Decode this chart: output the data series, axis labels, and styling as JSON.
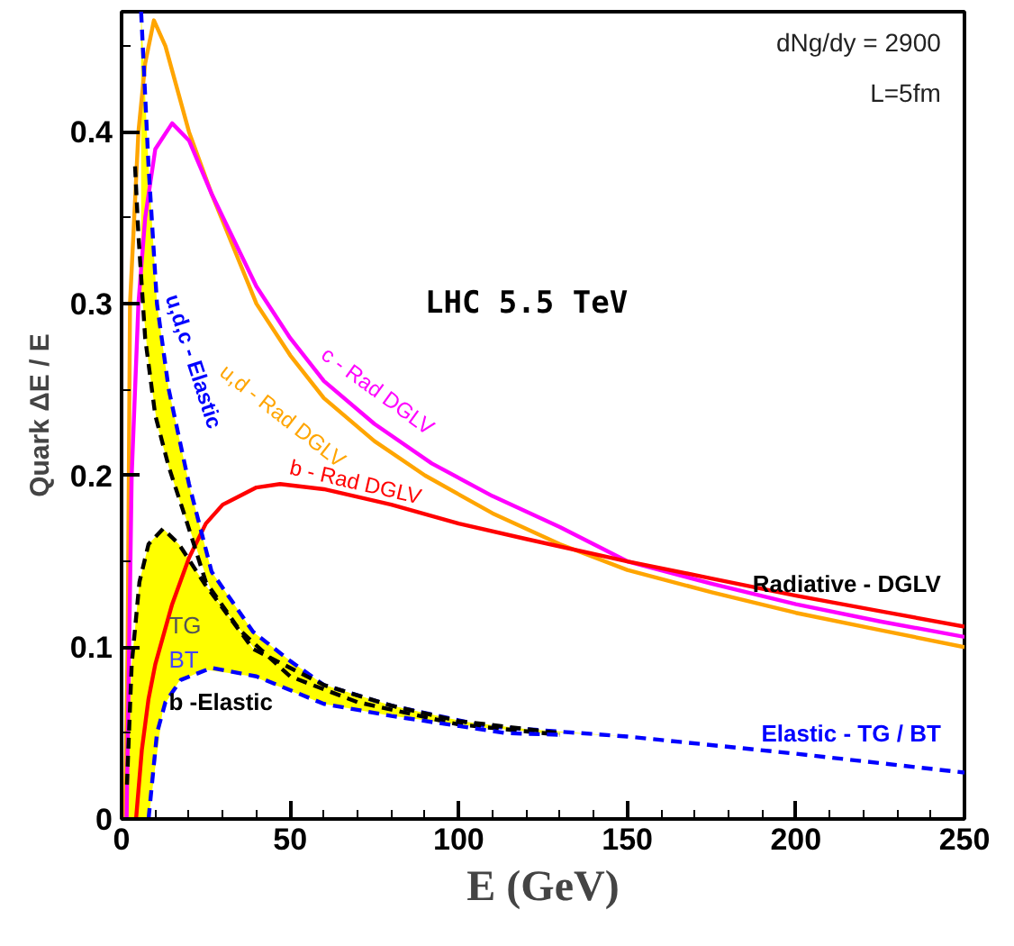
{
  "chart_data": {
    "type": "line",
    "xlabel": "E (GeV)",
    "ylabel": "Quark ΔE / E",
    "xlim": [
      0,
      250
    ],
    "ylim": [
      0,
      0.47
    ],
    "xticks": [
      0,
      50,
      100,
      150,
      200,
      250
    ],
    "yticks": [
      0,
      0.1,
      0.2,
      0.3,
      0.4
    ],
    "grid": false,
    "marker": "none",
    "series": [
      {
        "name": "u,d - Rad DGLV",
        "color": "#ffa500",
        "line_style": "solid",
        "x": [
          1,
          1.8,
          2.5,
          5,
          7,
          9.6,
          13,
          20,
          26.7,
          40,
          50,
          60,
          75,
          90,
          110,
          130,
          150,
          175,
          200,
          225,
          250
        ],
        "values": [
          0,
          0.1,
          0.3,
          0.4,
          0.44,
          0.465,
          0.45,
          0.4,
          0.364,
          0.3,
          0.27,
          0.245,
          0.22,
          0.2,
          0.178,
          0.16,
          0.145,
          0.132,
          0.12,
          0.11,
          0.1
        ]
      },
      {
        "name": "c - Rad DGLV",
        "color": "#ff00ff",
        "line_style": "solid",
        "x": [
          1.5,
          3,
          5,
          7,
          10,
          15,
          20,
          26.7,
          40,
          50,
          60,
          75,
          92,
          110,
          130,
          150,
          175,
          200,
          225,
          250
        ],
        "values": [
          0,
          0.2,
          0.3,
          0.35,
          0.39,
          0.405,
          0.395,
          0.364,
          0.31,
          0.28,
          0.255,
          0.23,
          0.207,
          0.188,
          0.17,
          0.15,
          0.137,
          0.125,
          0.115,
          0.106
        ]
      },
      {
        "name": "b - Rad DGLV",
        "color": "#ff0000",
        "line_style": "solid",
        "x": [
          4.3,
          6,
          8,
          10,
          15,
          20,
          25,
          30,
          40,
          47,
          60,
          80,
          100,
          120,
          150,
          175,
          200,
          225,
          250
        ],
        "values": [
          0,
          0.04,
          0.07,
          0.09,
          0.125,
          0.152,
          0.172,
          0.183,
          0.193,
          0.195,
          0.192,
          0.183,
          0.172,
          0.163,
          0.15,
          0.14,
          0.13,
          0.121,
          0.112
        ]
      },
      {
        "name": "u,d,c - Elastic",
        "color": "#0000ff",
        "line_style": "dashed",
        "x": [
          5.8,
          8,
          10.5,
          14,
          17.6,
          20,
          26.7,
          39,
          50,
          60,
          80,
          108,
          150,
          200,
          250
        ],
        "values": [
          0.47,
          0.38,
          0.3,
          0.25,
          0.217,
          0.195,
          0.144,
          0.109,
          0.092,
          0.078,
          0.066,
          0.054,
          0.048,
          0.038,
          0.027
        ],
        "lower": [
          0.31,
          0.265,
          0.23,
          0.205,
          0.183,
          0.17,
          0.132,
          0.1,
          0.083,
          0.075,
          0.064,
          0.053,
          0.048,
          0.038,
          0.027
        ],
        "upper": [
          0.47,
          0.38,
          0.3,
          0.25,
          0.217,
          0.195,
          0.144,
          0.109,
          0.092,
          0.078,
          0.066,
          0.054,
          0.048,
          0.038,
          0.027
        ]
      },
      {
        "color": "#000000",
        "line_style": "dashed",
        "x": [
          4,
          5,
          7,
          10,
          14,
          19,
          25,
          35,
          50,
          70,
          100,
          130
        ],
        "values": [
          0.38,
          0.34,
          0.28,
          0.235,
          0.205,
          0.175,
          0.138,
          0.11,
          0.083,
          0.068,
          0.055,
          0.049
        ]
      },
      {
        "color": "#000000",
        "line_style": "dashed",
        "x": [
          1.6,
          3,
          5.3,
          8,
          12.3,
          17,
          24.6,
          39,
          60,
          80,
          100,
          130
        ],
        "values": [
          0.02,
          0.09,
          0.138,
          0.16,
          0.169,
          0.16,
          0.137,
          0.099,
          0.078,
          0.066,
          0.057,
          0.05
        ],
        "lower": [
          0,
          0,
          0,
          0,
          0.065,
          0.08,
          0.087,
          0.083,
          0.067,
          0.06,
          0.055,
          0.049
        ],
        "upper": [
          0.02,
          0.09,
          0.138,
          0.16,
          0.169,
          0.16,
          0.137,
          0.099,
          0.078,
          0.066,
          0.057,
          0.05
        ]
      },
      {
        "color": "#0000ff",
        "line_style": "dashed",
        "x": [
          8,
          10.5,
          13,
          17.6,
          26.7,
          40,
          60,
          80,
          114,
          130
        ],
        "values": [
          0,
          0.05,
          0.068,
          0.081,
          0.088,
          0.083,
          0.067,
          0.06,
          0.05,
          0.049
        ]
      }
    ],
    "annotations": [
      "dNg/dy = 2900",
      "L=5fm",
      "LHC 5.5 TeV",
      {
        "text": "TG",
        "x": 14,
        "y": 0.113
      },
      "BT",
      {
        "text": "b -Elastic",
        "x": 14,
        "y": 0.068
      },
      "Radiative - DGLV",
      "Elastic - TG / BT"
    ]
  }
}
